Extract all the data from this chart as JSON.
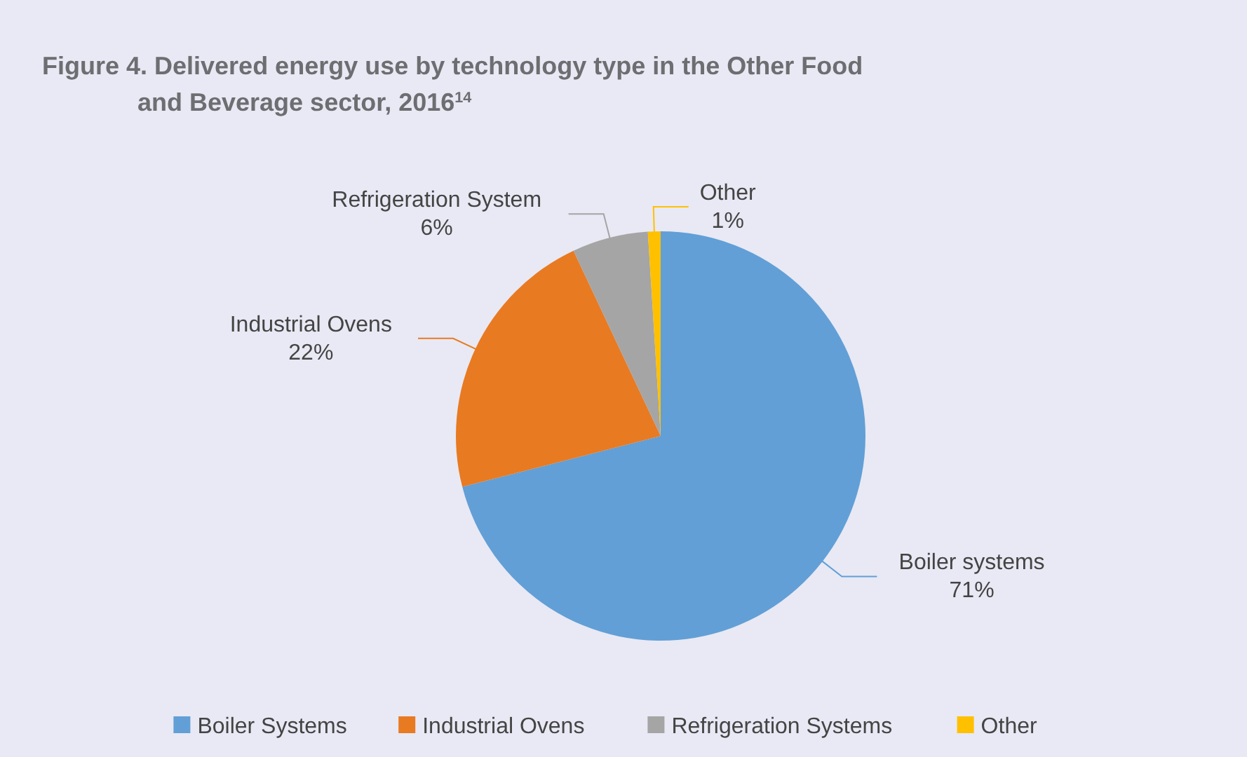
{
  "chart_data": {
    "type": "pie",
    "title": "Figure 4. Delivered energy use by technology type in the Other Food and Beverage sector, 2016$^{14}$",
    "categories": [
      "Boiler Systems",
      "Industrial Ovens",
      "Refrigeration Systems",
      "Other"
    ],
    "values": [
      71,
      22,
      6,
      1
    ],
    "colors": [
      "#629fd6",
      "#e87a22",
      "#a5a5a5",
      "#ffc000"
    ],
    "value_labels": [
      "Boiler systems\n71%",
      "Industrial Ovens\n22%",
      "Refrigeration System\n6%",
      "Other\n1%"
    ],
    "legend": "bottom"
  }
}
